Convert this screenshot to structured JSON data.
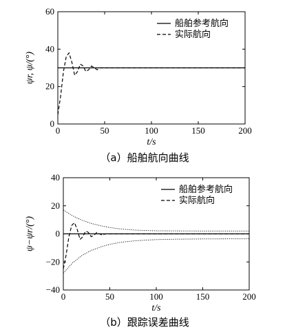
{
  "chart_data": [
    {
      "type": "line",
      "caption": "（a）船舶航向曲线",
      "xlabel": "t/s",
      "ylabel": "ψr, ψ/(°)",
      "xlim": [
        0,
        200
      ],
      "ylim": [
        0,
        60
      ],
      "xticks": [
        "0",
        "50",
        "100",
        "150",
        "200"
      ],
      "yticks": [
        "0",
        "20",
        "40",
        "60"
      ],
      "legend_position": "top-right",
      "grid": false,
      "series": [
        {
          "name": "船舶参考航向",
          "style": "solid",
          "x": [
            0,
            200
          ],
          "y": [
            30,
            30
          ]
        },
        {
          "name": "实际航向",
          "style": "dashed",
          "x": [
            0,
            3,
            6,
            9,
            12,
            15,
            18,
            21,
            24,
            27,
            30,
            33,
            36,
            39,
            42,
            45,
            50,
            55,
            60,
            70,
            80,
            200
          ],
          "y": [
            5,
            15,
            28,
            36,
            38,
            33,
            26,
            28,
            32,
            31,
            28,
            29,
            31,
            30,
            29,
            30,
            30,
            30,
            30,
            30,
            30,
            30
          ]
        }
      ]
    },
    {
      "type": "line",
      "caption": "（b）跟踪误差曲线",
      "xlabel": "t/s",
      "ylabel": "ψ−ψr/(°)",
      "xlim": [
        0,
        200
      ],
      "ylim": [
        -40,
        40
      ],
      "xticks": [
        "0",
        "50",
        "100",
        "150",
        "200"
      ],
      "yticks": [
        "−40",
        "−20",
        "0",
        "20",
        "40"
      ],
      "legend_position": "top-right",
      "grid": false,
      "series": [
        {
          "name": "船舶参考航向",
          "style": "solid",
          "x": [
            0,
            200
          ],
          "y": [
            0,
            0
          ]
        },
        {
          "name": "实际航向",
          "style": "dashed",
          "x": [
            0,
            3,
            6,
            9,
            12,
            15,
            18,
            21,
            24,
            27,
            30,
            33,
            36,
            39,
            42,
            45,
            50,
            55,
            60,
            70,
            80,
            200
          ],
          "y": [
            -25,
            -15,
            -2,
            6,
            8,
            3,
            -4,
            -2,
            2,
            1,
            -2,
            -1,
            1,
            0,
            -1,
            0,
            0,
            0,
            0,
            0,
            0,
            0
          ]
        },
        {
          "style": "dotted",
          "x": [
            0,
            10,
            20,
            30,
            40,
            50,
            60,
            70,
            80,
            100,
            120,
            150,
            200
          ],
          "y": [
            17,
            12.8,
            9.7,
            7.4,
            5.8,
            4.5,
            3.6,
            3.0,
            2.6,
            2.2,
            2.1,
            2.0,
            2.0
          ]
        },
        {
          "style": "dotted",
          "x": [
            0,
            10,
            20,
            30,
            40,
            50,
            60,
            70,
            80,
            100,
            120,
            150,
            200
          ],
          "y": [
            -28,
            -20.6,
            -15.4,
            -11.8,
            -9.3,
            -7.5,
            -6.2,
            -5.4,
            -4.8,
            -4.1,
            -3.8,
            -3.6,
            -3.5
          ]
        }
      ]
    }
  ]
}
